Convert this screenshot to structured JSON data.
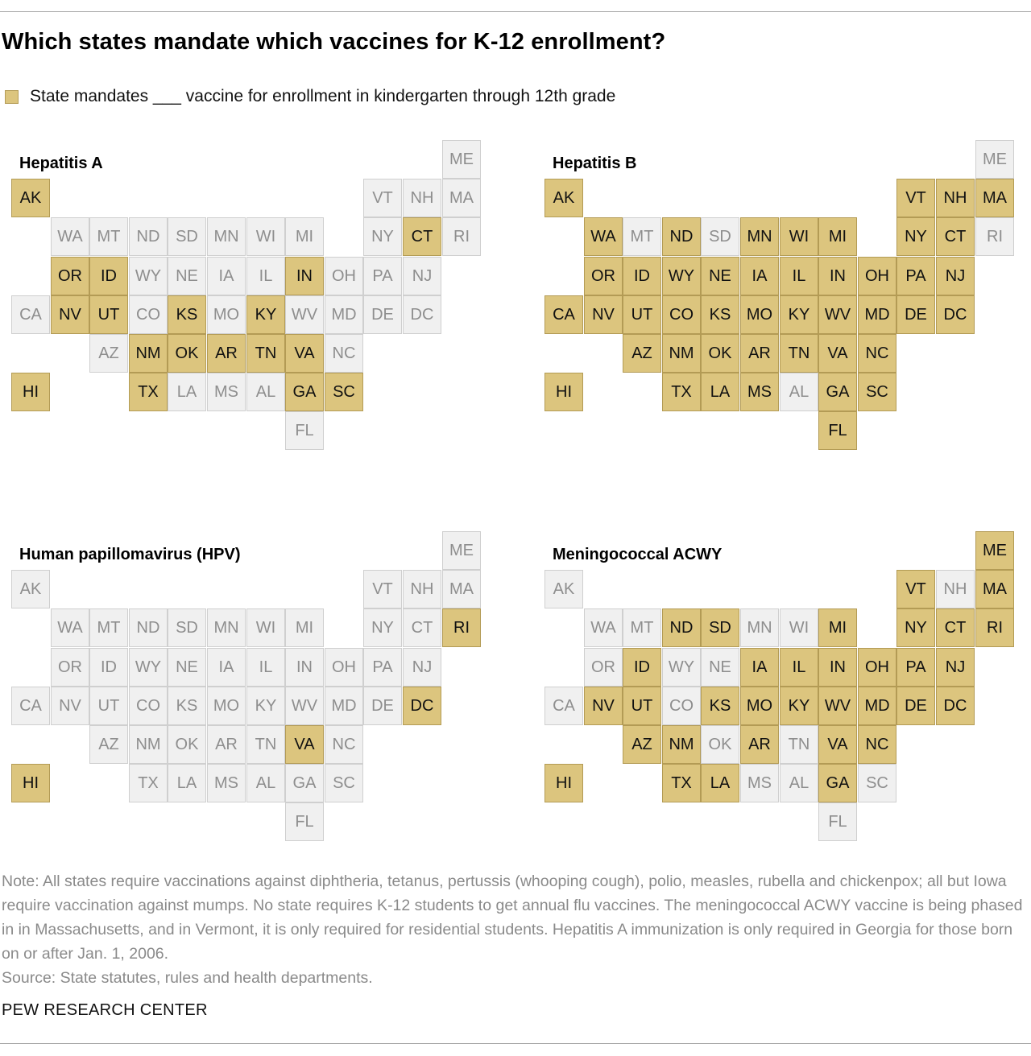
{
  "title": "Which states mandate which vaccines for K-12 enrollment?",
  "legend": {
    "label": "State mandates ___ vaccine for enrollment in kindergarten through 12th grade",
    "color": "#dcc57e"
  },
  "colors": {
    "mandated": "#dcc57e",
    "not_mandated": "#f0f0f0"
  },
  "panels": [
    {
      "title": "Hepatitis A",
      "mandated": [
        "AK",
        "CT",
        "OR",
        "ID",
        "IN",
        "NV",
        "UT",
        "KS",
        "KY",
        "NM",
        "OK",
        "AR",
        "TN",
        "VA",
        "HI",
        "TX",
        "GA",
        "SC"
      ]
    },
    {
      "title": "Hepatitis B",
      "mandated": [
        "AK",
        "VT",
        "NH",
        "MA",
        "WA",
        "ND",
        "MN",
        "WI",
        "MI",
        "NY",
        "CT",
        "OR",
        "ID",
        "WY",
        "NE",
        "IA",
        "IL",
        "IN",
        "OH",
        "PA",
        "NJ",
        "CA",
        "NV",
        "UT",
        "CO",
        "KS",
        "MO",
        "KY",
        "WV",
        "MD",
        "DE",
        "DC",
        "AZ",
        "NM",
        "OK",
        "AR",
        "TN",
        "VA",
        "NC",
        "HI",
        "TX",
        "LA",
        "MS",
        "GA",
        "SC",
        "FL"
      ]
    },
    {
      "title": "Human papillomavirus (HPV)",
      "mandated": [
        "RI",
        "DC",
        "VA",
        "HI"
      ]
    },
    {
      "title": "Meningococcal ACWY",
      "mandated": [
        "ME",
        "VT",
        "MA",
        "ND",
        "SD",
        "MI",
        "NY",
        "CT",
        "RI",
        "ID",
        "IA",
        "IL",
        "IN",
        "OH",
        "PA",
        "NJ",
        "NV",
        "UT",
        "KS",
        "MO",
        "KY",
        "WV",
        "MD",
        "DE",
        "DC",
        "AZ",
        "NM",
        "AR",
        "VA",
        "NC",
        "HI",
        "TX",
        "LA",
        "GA"
      ]
    }
  ],
  "note": "Note: All states require vaccinations against diphtheria, tetanus, pertussis (whooping cough), polio, measles, rubella and chickenpox; all but Iowa require vaccination against mumps. No state requires K-12 students to get annual flu vaccines. The meningococcal ACWY vaccine is being phased in in Massachusetts, and in Vermont, it is only required for residential students. Hepatitis A immunization is only required in Georgia for those born on or after Jan. 1, 2006.",
  "source": "Source: State statutes, rules and health departments.",
  "credit": "PEW RESEARCH CENTER"
}
